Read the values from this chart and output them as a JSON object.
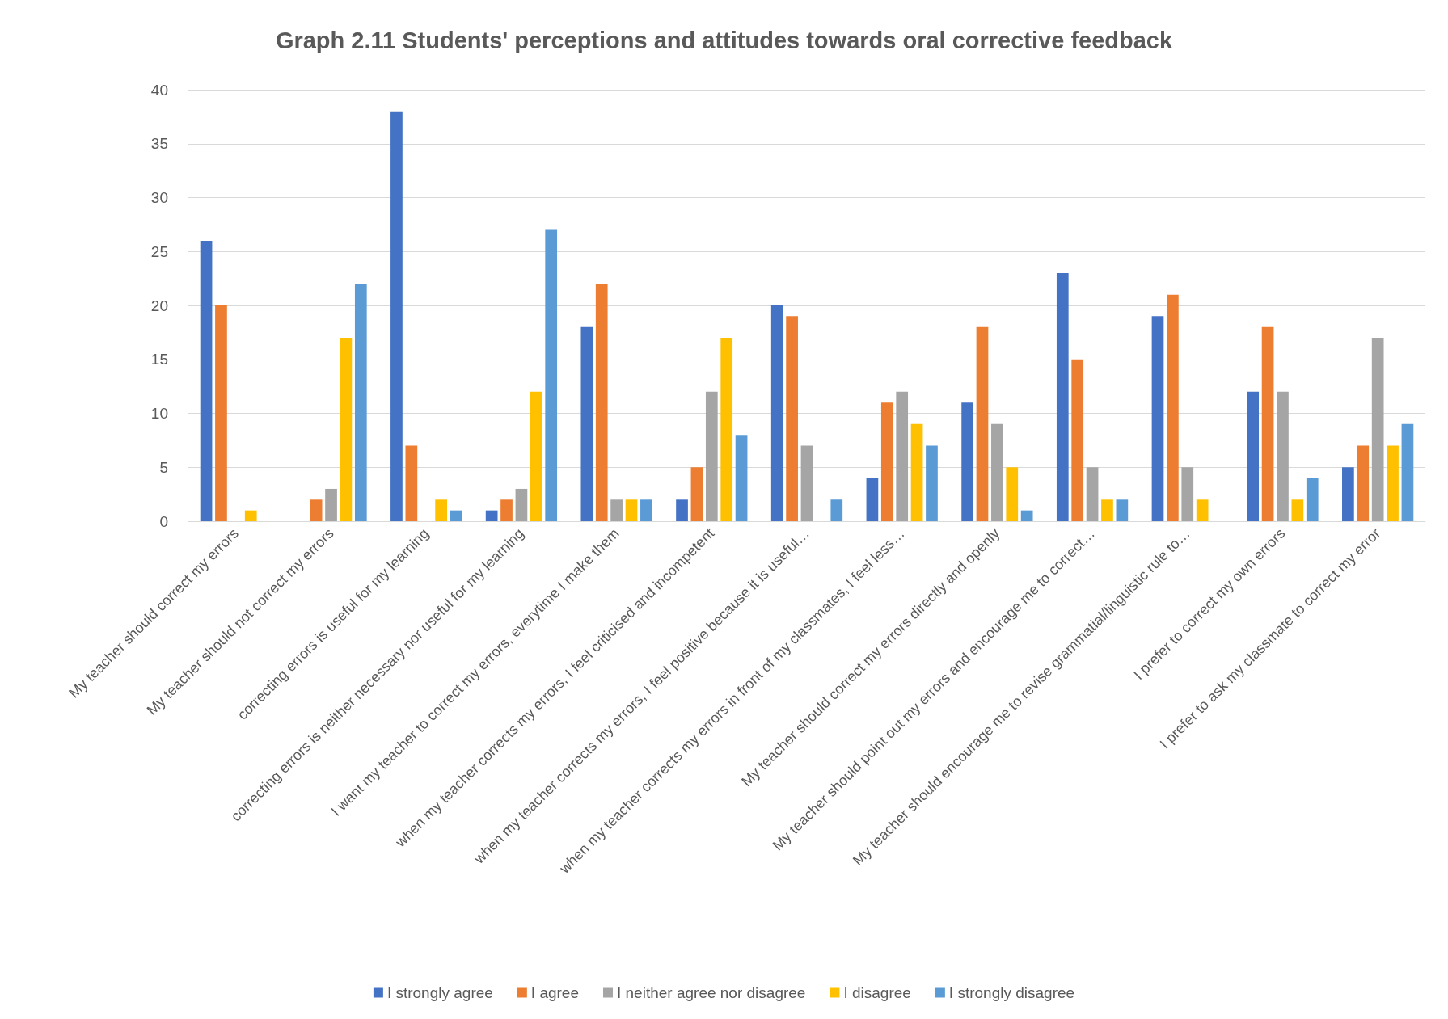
{
  "chart_data": {
    "type": "bar",
    "title": "Graph 2.11 Students' perceptions and attitudes towards oral corrective feedback",
    "categories": [
      "My teacher should correct my errors",
      "My teacher should not correct my errors",
      "correcting errors is useful for my learning",
      "correcting errors is neither necessary nor useful for my learning",
      "I want my teacher to correct my errors, everytime I make them",
      "when my teacher corrects my errors, I feel criticised and incompetent",
      "when my teacher corrects my errors, I feel positive because it is useful…",
      "when my teacher corrects my errors in front of my classmates, I feel less…",
      "My teacher should correct my errors directly and openly",
      "My teacher should point out my errors and encourage me to correct…",
      "My teacher should encourage me to revise grammatial/linguistic rule to…",
      "I prefer to correct my own errors",
      "I prefer to ask my classmate to correct my error"
    ],
    "series": [
      {
        "name": "I strongly agree",
        "color": "#4472c4",
        "values": [
          26,
          0,
          38,
          1,
          18,
          2,
          20,
          4,
          11,
          23,
          19,
          12,
          5
        ]
      },
      {
        "name": "I agree",
        "color": "#ed7d31",
        "values": [
          20,
          2,
          7,
          2,
          22,
          5,
          19,
          11,
          18,
          15,
          21,
          18,
          7
        ]
      },
      {
        "name": "I neither agree nor disagree",
        "color": "#a5a5a5",
        "values": [
          0,
          3,
          0,
          3,
          2,
          12,
          7,
          12,
          9,
          5,
          5,
          12,
          17
        ]
      },
      {
        "name": "I disagree",
        "color": "#ffc000",
        "values": [
          1,
          17,
          2,
          12,
          2,
          17,
          0,
          9,
          5,
          2,
          2,
          2,
          7
        ]
      },
      {
        "name": "I strongly disagree",
        "color": "#5b9bd5",
        "values": [
          0,
          22,
          1,
          27,
          2,
          8,
          2,
          7,
          1,
          2,
          0,
          4,
          9
        ]
      }
    ],
    "ylim": [
      0,
      40
    ],
    "yticks": [
      0,
      5,
      10,
      15,
      20,
      25,
      30,
      35,
      40
    ],
    "grid": "y",
    "legend": "bottom"
  }
}
